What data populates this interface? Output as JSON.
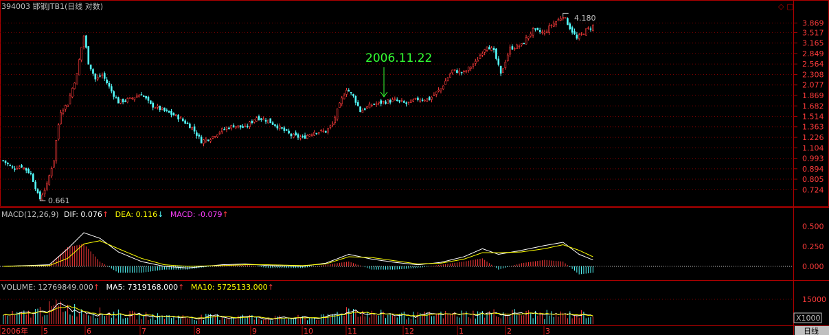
{
  "header": {
    "code": "394003",
    "name": "邯钢JTB1",
    "period": "(日线 对数)"
  },
  "colors": {
    "up": "#ff3b3b",
    "down": "#54ffff",
    "dif": "#ffffff",
    "dea": "#ffff00",
    "macd_label": "#ff40ff",
    "vol_ma5": "#ffffff",
    "vol_ma10": "#ffff00",
    "border": "#b00000",
    "annotation": "#33ff33"
  },
  "chart_data": [
    {
      "type": "candlestick",
      "title": "394003 邯钢JTB1(日线 对数)",
      "y_scale": "log",
      "ylim": [
        0.65,
        4.25
      ],
      "y_ticks": [
        3.869,
        3.517,
        3.165,
        2.849,
        2.564,
        2.308,
        2.077,
        1.869,
        1.682,
        1.514,
        1.363,
        1.226,
        1.104,
        0.993,
        0.894,
        0.805,
        0.724
      ],
      "x_labels": [
        "2006年",
        "5",
        "6",
        "7",
        "8",
        "9",
        "10",
        "11",
        "12",
        "1",
        "2",
        "3"
      ],
      "label_max": "4.180",
      "label_min": "0.661",
      "annotation": "2006.11.22",
      "points": [
        {
          "t": 0,
          "v": 0.97
        },
        {
          "t": 4,
          "v": 0.9
        },
        {
          "t": 8,
          "v": 0.92
        },
        {
          "t": 12,
          "v": 0.85
        },
        {
          "t": 15,
          "v": 0.69
        },
        {
          "t": 16,
          "v": 0.661
        },
        {
          "t": 19,
          "v": 0.76
        },
        {
          "t": 22,
          "v": 0.98
        },
        {
          "t": 25,
          "v": 1.6
        },
        {
          "t": 28,
          "v": 1.72
        },
        {
          "t": 32,
          "v": 2.3
        },
        {
          "t": 35,
          "v": 3.4
        },
        {
          "t": 37,
          "v": 2.6
        },
        {
          "t": 40,
          "v": 2.2
        },
        {
          "t": 43,
          "v": 2.3
        },
        {
          "t": 47,
          "v": 1.95
        },
        {
          "t": 50,
          "v": 1.75
        },
        {
          "t": 55,
          "v": 1.8
        },
        {
          "t": 60,
          "v": 1.9
        },
        {
          "t": 64,
          "v": 1.7
        },
        {
          "t": 70,
          "v": 1.6
        },
        {
          "t": 76,
          "v": 1.5
        },
        {
          "t": 82,
          "v": 1.35
        },
        {
          "t": 86,
          "v": 1.18
        },
        {
          "t": 90,
          "v": 1.22
        },
        {
          "t": 95,
          "v": 1.32
        },
        {
          "t": 100,
          "v": 1.38
        },
        {
          "t": 105,
          "v": 1.35
        },
        {
          "t": 110,
          "v": 1.5
        },
        {
          "t": 115,
          "v": 1.45
        },
        {
          "t": 120,
          "v": 1.35
        },
        {
          "t": 125,
          "v": 1.25
        },
        {
          "t": 130,
          "v": 1.22
        },
        {
          "t": 135,
          "v": 1.3
        },
        {
          "t": 140,
          "v": 1.3
        },
        {
          "t": 143,
          "v": 1.4
        },
        {
          "t": 146,
          "v": 1.7
        },
        {
          "t": 149,
          "v": 2.0
        },
        {
          "t": 152,
          "v": 1.85
        },
        {
          "t": 155,
          "v": 1.6
        },
        {
          "t": 160,
          "v": 1.7
        },
        {
          "t": 165,
          "v": 1.75
        },
        {
          "t": 170,
          "v": 1.78
        },
        {
          "t": 175,
          "v": 1.72
        },
        {
          "t": 180,
          "v": 1.8
        },
        {
          "t": 185,
          "v": 1.8
        },
        {
          "t": 190,
          "v": 2.0
        },
        {
          "t": 195,
          "v": 2.4
        },
        {
          "t": 200,
          "v": 2.35
        },
        {
          "t": 205,
          "v": 2.6
        },
        {
          "t": 210,
          "v": 3.1
        },
        {
          "t": 213,
          "v": 2.9
        },
        {
          "t": 216,
          "v": 2.3
        },
        {
          "t": 220,
          "v": 3.0
        },
        {
          "t": 225,
          "v": 3.1
        },
        {
          "t": 230,
          "v": 3.6
        },
        {
          "t": 235,
          "v": 3.5
        },
        {
          "t": 238,
          "v": 3.8
        },
        {
          "t": 241,
          "v": 4.0
        },
        {
          "t": 243,
          "v": 4.18
        },
        {
          "t": 246,
          "v": 3.7
        },
        {
          "t": 249,
          "v": 3.3
        },
        {
          "t": 253,
          "v": 3.6
        },
        {
          "t": 256,
          "v": 3.75
        }
      ]
    },
    {
      "type": "macd",
      "params": "MACD(12,26,9)",
      "dif_label": "DIF: 0.076",
      "dea_label": "DEA: 0.116",
      "macd_label": "MACD: -0.079",
      "ylim": [
        -0.12,
        0.6
      ],
      "y_ticks": [
        0.5,
        0.25,
        0.0
      ],
      "dif": [
        [
          0,
          0.0
        ],
        [
          20,
          0.02
        ],
        [
          28,
          0.22
        ],
        [
          35,
          0.42
        ],
        [
          42,
          0.35
        ],
        [
          50,
          0.18
        ],
        [
          60,
          0.06
        ],
        [
          70,
          0.0
        ],
        [
          80,
          -0.02
        ],
        [
          95,
          0.02
        ],
        [
          105,
          0.03
        ],
        [
          115,
          0.01
        ],
        [
          130,
          0.0
        ],
        [
          140,
          0.04
        ],
        [
          150,
          0.15
        ],
        [
          160,
          0.09
        ],
        [
          170,
          0.05
        ],
        [
          180,
          0.02
        ],
        [
          190,
          0.05
        ],
        [
          200,
          0.12
        ],
        [
          208,
          0.22
        ],
        [
          215,
          0.15
        ],
        [
          225,
          0.2
        ],
        [
          235,
          0.26
        ],
        [
          243,
          0.3
        ],
        [
          250,
          0.15
        ],
        [
          256,
          0.08
        ]
      ],
      "dea": [
        [
          0,
          0.0
        ],
        [
          20,
          0.01
        ],
        [
          28,
          0.1
        ],
        [
          35,
          0.28
        ],
        [
          42,
          0.32
        ],
        [
          50,
          0.22
        ],
        [
          60,
          0.1
        ],
        [
          70,
          0.02
        ],
        [
          80,
          0.0
        ],
        [
          95,
          0.01
        ],
        [
          105,
          0.02
        ],
        [
          115,
          0.02
        ],
        [
          130,
          0.01
        ],
        [
          140,
          0.03
        ],
        [
          150,
          0.12
        ],
        [
          160,
          0.11
        ],
        [
          170,
          0.07
        ],
        [
          180,
          0.03
        ],
        [
          190,
          0.04
        ],
        [
          200,
          0.09
        ],
        [
          208,
          0.17
        ],
        [
          215,
          0.17
        ],
        [
          225,
          0.18
        ],
        [
          235,
          0.22
        ],
        [
          243,
          0.27
        ],
        [
          250,
          0.2
        ],
        [
          256,
          0.12
        ]
      ]
    },
    {
      "type": "volume",
      "vol_label": "VOLUME: 12769849.000",
      "ma5_label": "MA5: 7319168.000",
      "ma10_label": "MA10: 5725133.000",
      "y_ticks": [
        15000
      ],
      "unit": "X1000",
      "ylim": [
        0,
        20000
      ],
      "levels": [
        [
          0,
          5000
        ],
        [
          10,
          6000
        ],
        [
          25,
          11000
        ],
        [
          30,
          9000
        ],
        [
          40,
          7000
        ],
        [
          60,
          5000
        ],
        [
          80,
          4000
        ],
        [
          100,
          4500
        ],
        [
          120,
          3500
        ],
        [
          140,
          4000
        ],
        [
          150,
          9000
        ],
        [
          160,
          6000
        ],
        [
          180,
          5000
        ],
        [
          200,
          6000
        ],
        [
          220,
          6500
        ],
        [
          240,
          5500
        ],
        [
          256,
          6000
        ]
      ]
    }
  ]
}
